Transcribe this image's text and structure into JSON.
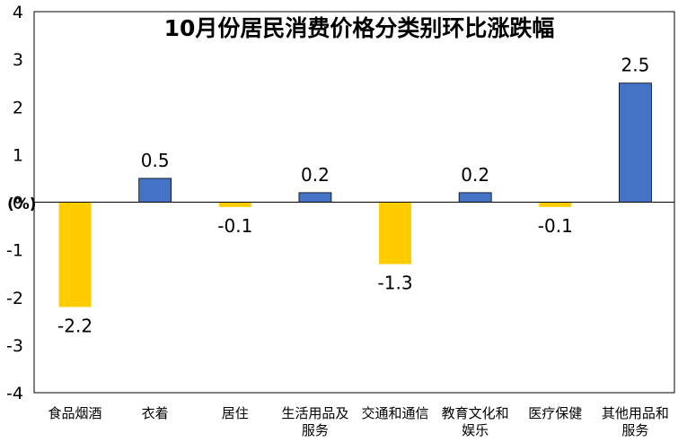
{
  "colors": {
    "positive": "#4472C4",
    "negative": "#FFCC00",
    "axis": "#000000",
    "frame": "#000000"
  },
  "chart_data": {
    "type": "bar",
    "title": "10月份居民消费价格分类别环比涨跌幅",
    "unit_label": "(%)",
    "ylim": [
      -4,
      4
    ],
    "yticks": [
      "4",
      "3",
      "2",
      "1",
      "0",
      "-1",
      "-2",
      "-3",
      "-4"
    ],
    "grid": false,
    "legend": "none",
    "categories": [
      [
        "食品烟酒"
      ],
      [
        "衣着"
      ],
      [
        "居住"
      ],
      [
        "生活用品及",
        "服务"
      ],
      [
        "交通和通信"
      ],
      [
        "教育文化和",
        "娱乐"
      ],
      [
        "医疗保健"
      ],
      [
        "其他用品和",
        "服务"
      ]
    ],
    "values": [
      -2.2,
      0.5,
      -0.1,
      0.2,
      -1.3,
      0.2,
      -0.1,
      2.5
    ],
    "data_labels": [
      "-2.2",
      "0.5",
      "-0.1",
      "0.2",
      "-1.3",
      "0.2",
      "-0.1",
      "2.5"
    ]
  }
}
